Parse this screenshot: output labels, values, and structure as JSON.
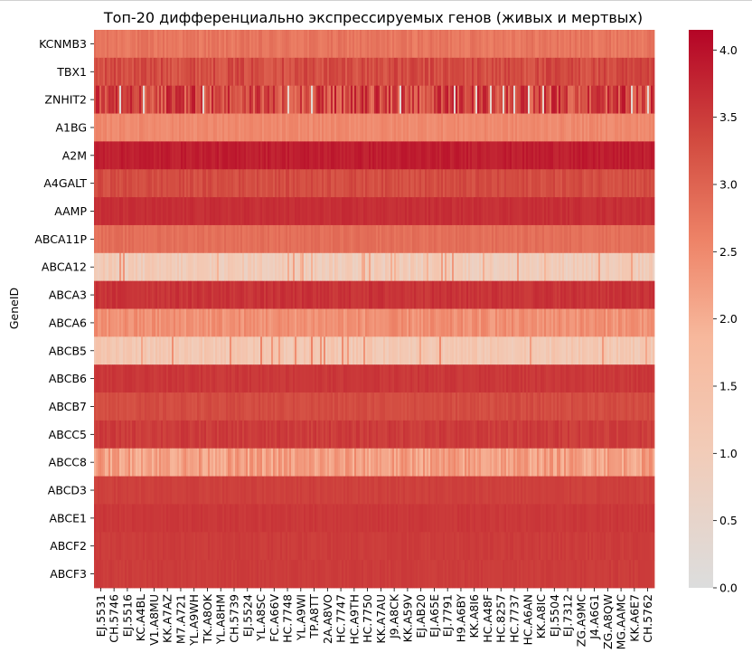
{
  "chart_data": {
    "type": "heatmap",
    "title": "Топ-20 дифференциально экспрессируемых генов (живых и мертвых)",
    "xlabel": "",
    "ylabel": "GeneID",
    "rows": [
      "KCNMB3",
      "TBX1",
      "ZNHIT2",
      "A1BG",
      "A2M",
      "A4GALT",
      "AAMP",
      "ABCA11P",
      "ABCA12",
      "ABCA3",
      "ABCA6",
      "ABCB5",
      "ABCB6",
      "ABCB7",
      "ABCC5",
      "ABCC8",
      "ABCD3",
      "ABCE1",
      "ABCF2",
      "ABCF3"
    ],
    "x_tick_labels": [
      "EJ.5531",
      "CH.5746",
      "EJ.5516",
      "KC.A4BL",
      "V1.A8MU",
      "KK.A7AZ",
      "M7.A721",
      "YL.A9WH",
      "TK.A8OK",
      "YL.A8HM",
      "CH.5739",
      "EJ.5524",
      "YL.A8SC",
      "FC.A66V",
      "HC.7748",
      "YL.A9WI",
      "TP.A8TT",
      "2A.A8VO",
      "HC.7747",
      "HC.A9TH",
      "HC.7750",
      "KK.A7AU",
      "J9.A8CK",
      "KK.A59V",
      "EJ.AB20",
      "EJ.A65E",
      "EJ.7791",
      "H9.A6BY",
      "KK.A8I6",
      "HC.A48F",
      "HC.8257",
      "HC.7737",
      "HC.A6AN",
      "KK.A8IC",
      "EJ.5504",
      "EJ.7312",
      "ZG.A9MC",
      "J4.A6G1",
      "ZG.A8QW",
      "MG.AAMC",
      "KK.A6E7",
      "CH.5762"
    ],
    "row_mean_values": [
      2.75,
      3.3,
      3.35,
      2.5,
      3.85,
      3.3,
      3.65,
      2.85,
      1.0,
      3.6,
      2.4,
      1.2,
      3.55,
      3.3,
      3.5,
      2.2,
      3.45,
      3.55,
      3.5,
      3.5
    ],
    "row_variation": [
      0.15,
      0.25,
      0.6,
      0.12,
      0.12,
      0.15,
      0.08,
      0.1,
      0.35,
      0.12,
      0.22,
      0.3,
      0.08,
      0.1,
      0.12,
      0.35,
      0.06,
      0.06,
      0.06,
      0.06
    ],
    "colorbar": {
      "min": 0.0,
      "max": 4.15,
      "ticks": [
        "0.0",
        "0.5",
        "1.0",
        "1.5",
        "2.0",
        "2.5",
        "3.0",
        "3.5",
        "4.0"
      ],
      "colormap": "coolwarm (upper half)"
    },
    "colors": {
      "low": "#dcdddd",
      "mid_low": "#f7b89c",
      "mid": "#ee8468",
      "mid_high": "#d24b40",
      "high": "#b40426"
    },
    "legend_placement": "right",
    "grid": false
  }
}
